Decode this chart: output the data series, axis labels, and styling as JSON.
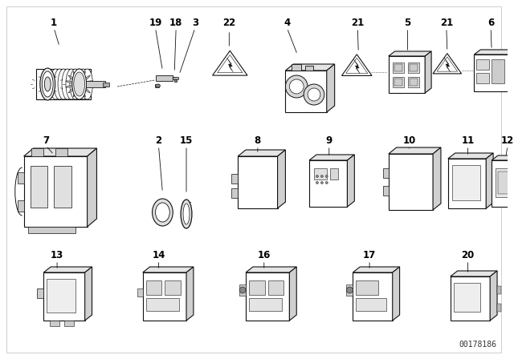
{
  "background_color": "#ffffff",
  "watermark": "00178186",
  "text_color": "#000000",
  "label_fontsize": 8.5,
  "watermark_fontsize": 7,
  "fig_width": 6.4,
  "fig_height": 4.48,
  "dpi": 100,
  "border_color": "#cccccc",
  "line_color": "#111111",
  "gray_light": "#e8e8e8",
  "gray_mid": "#cccccc",
  "gray_dark": "#999999"
}
